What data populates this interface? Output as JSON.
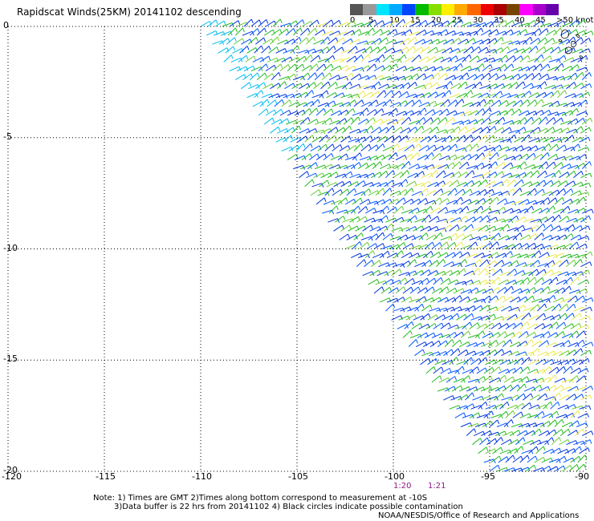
{
  "title": "Rapidscat Winds(25KM) 20141102 descending",
  "legend": {
    "labels": [
      "0",
      "5",
      "10",
      "15",
      "20",
      "25",
      "30",
      "35",
      "40",
      "45",
      ">50 knots"
    ],
    "colors": [
      "#555555",
      "#999999",
      "#00e5ff",
      "#00aaff",
      "#0044ff",
      "#00bb00",
      "#88dd00",
      "#ffee00",
      "#ffaa00",
      "#ff6600",
      "#ee0000",
      "#aa0000",
      "#774400",
      "#ff00ff",
      "#aa00cc",
      "#6600aa"
    ]
  },
  "map": {
    "type": "wind-barb-swath",
    "lon_range": [
      -120,
      -90
    ],
    "lat_range": [
      -20,
      0
    ],
    "x_ticks": [
      "-120",
      "-115",
      "-110",
      "-105",
      "-100",
      "-95",
      "-90"
    ],
    "y_ticks": [
      "0",
      "-5",
      "-10",
      "-15",
      "-20"
    ],
    "grid": true,
    "barb_colors": [
      "#0033dd",
      "#0055ff",
      "#00bbee",
      "#22bb22",
      "#66cc33",
      "#e8e84a"
    ]
  },
  "times": [
    "1:20",
    "1:21"
  ],
  "note_line1": "Note: 1) Times are GMT 2)Times along bottom correspond to measurement at -10S",
  "note_line2": "3)Data buffer is 22 hrs from 20141102 4) Black circles indicate possible contamination",
  "credit": "NOAA/NESDIS/Office of Research and Applications"
}
